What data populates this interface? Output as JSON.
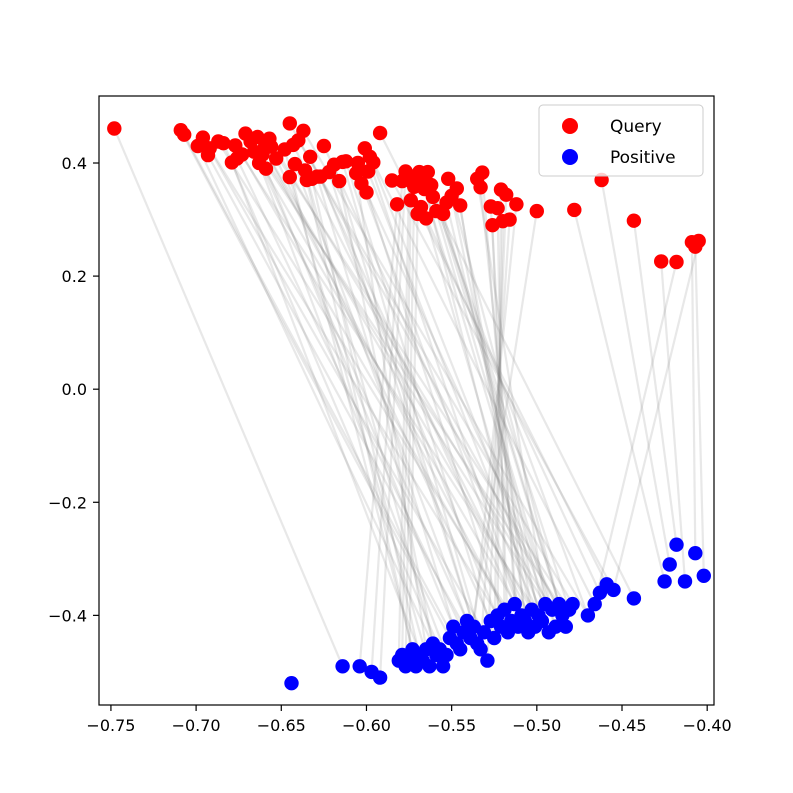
{
  "chart_data": {
    "type": "scatter",
    "title": "",
    "xlabel": "",
    "ylabel": "",
    "xlim": [
      -0.757,
      -0.396
    ],
    "ylim": [
      -0.5585,
      0.5185
    ],
    "xticks": [
      -0.75,
      -0.7,
      -0.65,
      -0.6,
      -0.55,
      -0.5,
      -0.45,
      -0.4
    ],
    "xtick_labels": [
      "−0.75",
      "−0.70",
      "−0.65",
      "−0.60",
      "−0.55",
      "−0.50",
      "−0.45",
      "−0.40"
    ],
    "yticks": [
      0.4,
      0.2,
      0.0,
      -0.2,
      -0.4
    ],
    "ytick_labels": [
      "0.4",
      "0.2",
      "0.0",
      "−0.2",
      "−0.4"
    ],
    "grid": false,
    "legend_position": "top-right",
    "connector_color": "#808080",
    "series": [
      {
        "name": "Query",
        "color": "#ff0000",
        "points": [
          [
            -0.748,
            0.461
          ],
          [
            -0.709,
            0.458
          ],
          [
            -0.707,
            0.45
          ],
          [
            -0.699,
            0.43
          ],
          [
            -0.696,
            0.445
          ],
          [
            -0.693,
            0.414
          ],
          [
            -0.692,
            0.426
          ],
          [
            -0.687,
            0.438
          ],
          [
            -0.684,
            0.435
          ],
          [
            -0.679,
            0.401
          ],
          [
            -0.677,
            0.431
          ],
          [
            -0.676,
            0.408
          ],
          [
            -0.673,
            0.415
          ],
          [
            -0.671,
            0.452
          ],
          [
            -0.668,
            0.438
          ],
          [
            -0.666,
            0.42
          ],
          [
            -0.664,
            0.446
          ],
          [
            -0.663,
            0.4
          ],
          [
            -0.661,
            0.415
          ],
          [
            -0.66,
            0.426
          ],
          [
            -0.659,
            0.39
          ],
          [
            -0.657,
            0.443
          ],
          [
            -0.656,
            0.429
          ],
          [
            -0.653,
            0.408
          ],
          [
            -0.648,
            0.424
          ],
          [
            -0.645,
            0.47
          ],
          [
            -0.645,
            0.375
          ],
          [
            -0.643,
            0.432
          ],
          [
            -0.642,
            0.398
          ],
          [
            -0.64,
            0.44
          ],
          [
            -0.637,
            0.457
          ],
          [
            -0.636,
            0.387
          ],
          [
            -0.635,
            0.37
          ],
          [
            -0.633,
            0.411
          ],
          [
            -0.632,
            0.372
          ],
          [
            -0.629,
            0.376
          ],
          [
            -0.627,
            0.376
          ],
          [
            -0.625,
            0.43
          ],
          [
            -0.622,
            0.384
          ],
          [
            -0.619,
            0.397
          ],
          [
            -0.616,
            0.368
          ],
          [
            -0.614,
            0.402
          ],
          [
            -0.612,
            0.403
          ],
          [
            -0.606,
            0.382
          ],
          [
            -0.605,
            0.4
          ],
          [
            -0.603,
            0.364
          ],
          [
            -0.601,
            0.426
          ],
          [
            -0.6,
            0.348
          ],
          [
            -0.599,
            0.385
          ],
          [
            -0.598,
            0.411
          ],
          [
            -0.596,
            0.401
          ],
          [
            -0.592,
            0.453
          ],
          [
            -0.585,
            0.369
          ],
          [
            -0.582,
            0.327
          ],
          [
            -0.579,
            0.368
          ],
          [
            -0.577,
            0.385
          ],
          [
            -0.575,
            0.37
          ],
          [
            -0.574,
            0.334
          ],
          [
            -0.572,
            0.358
          ],
          [
            -0.57,
            0.31
          ],
          [
            -0.569,
            0.384
          ],
          [
            -0.568,
            0.322
          ],
          [
            -0.567,
            0.374
          ],
          [
            -0.566,
            0.354
          ],
          [
            -0.565,
            0.302
          ],
          [
            -0.564,
            0.384
          ],
          [
            -0.562,
            0.361
          ],
          [
            -0.561,
            0.34
          ],
          [
            -0.559,
            0.315
          ],
          [
            -0.555,
            0.31
          ],
          [
            -0.553,
            0.33
          ],
          [
            -0.552,
            0.372
          ],
          [
            -0.55,
            0.342
          ],
          [
            -0.547,
            0.355
          ],
          [
            -0.545,
            0.325
          ],
          [
            -0.535,
            0.372
          ],
          [
            -0.533,
            0.357
          ],
          [
            -0.532,
            0.383
          ],
          [
            -0.527,
            0.323
          ],
          [
            -0.526,
            0.29
          ],
          [
            -0.523,
            0.32
          ],
          [
            -0.521,
            0.353
          ],
          [
            -0.52,
            0.297
          ],
          [
            -0.518,
            0.344
          ],
          [
            -0.516,
            0.3
          ],
          [
            -0.512,
            0.327
          ],
          [
            -0.5,
            0.315
          ],
          [
            -0.478,
            0.317
          ],
          [
            -0.462,
            0.37
          ],
          [
            -0.443,
            0.298
          ],
          [
            -0.427,
            0.226
          ],
          [
            -0.409,
            0.26
          ],
          [
            -0.407,
            0.252
          ],
          [
            -0.405,
            0.262
          ],
          [
            -0.418,
            0.225
          ]
        ]
      },
      {
        "name": "Positive",
        "color": "#0000ff",
        "points": [
          [
            -0.644,
            -0.52
          ],
          [
            -0.614,
            -0.49
          ],
          [
            -0.604,
            -0.49
          ],
          [
            -0.597,
            -0.5
          ],
          [
            -0.592,
            -0.51
          ],
          [
            -0.581,
            -0.48
          ],
          [
            -0.579,
            -0.47
          ],
          [
            -0.577,
            -0.49
          ],
          [
            -0.575,
            -0.48
          ],
          [
            -0.573,
            -0.46
          ],
          [
            -0.571,
            -0.49
          ],
          [
            -0.569,
            -0.47
          ],
          [
            -0.567,
            -0.48
          ],
          [
            -0.565,
            -0.46
          ],
          [
            -0.563,
            -0.49
          ],
          [
            -0.561,
            -0.45
          ],
          [
            -0.559,
            -0.47
          ],
          [
            -0.557,
            -0.46
          ],
          [
            -0.555,
            -0.49
          ],
          [
            -0.553,
            -0.47
          ],
          [
            -0.551,
            -0.44
          ],
          [
            -0.549,
            -0.42
          ],
          [
            -0.547,
            -0.45
          ],
          [
            -0.545,
            -0.46
          ],
          [
            -0.543,
            -0.43
          ],
          [
            -0.541,
            -0.41
          ],
          [
            -0.539,
            -0.44
          ],
          [
            -0.537,
            -0.42
          ],
          [
            -0.535,
            -0.45
          ],
          [
            -0.533,
            -0.46
          ],
          [
            -0.531,
            -0.43
          ],
          [
            -0.529,
            -0.48
          ],
          [
            -0.527,
            -0.41
          ],
          [
            -0.525,
            -0.44
          ],
          [
            -0.523,
            -0.4
          ],
          [
            -0.521,
            -0.42
          ],
          [
            -0.519,
            -0.39
          ],
          [
            -0.517,
            -0.43
          ],
          [
            -0.515,
            -0.41
          ],
          [
            -0.513,
            -0.38
          ],
          [
            -0.511,
            -0.42
          ],
          [
            -0.509,
            -0.4
          ],
          [
            -0.507,
            -0.41
          ],
          [
            -0.505,
            -0.43
          ],
          [
            -0.503,
            -0.39
          ],
          [
            -0.501,
            -0.42
          ],
          [
            -0.499,
            -0.4
          ],
          [
            -0.497,
            -0.41
          ],
          [
            -0.495,
            -0.38
          ],
          [
            -0.493,
            -0.43
          ],
          [
            -0.491,
            -0.39
          ],
          [
            -0.489,
            -0.42
          ],
          [
            -0.487,
            -0.38
          ],
          [
            -0.485,
            -0.4
          ],
          [
            -0.483,
            -0.42
          ],
          [
            -0.481,
            -0.39
          ],
          [
            -0.479,
            -0.38
          ],
          [
            -0.47,
            -0.4
          ],
          [
            -0.466,
            -0.38
          ],
          [
            -0.463,
            -0.36
          ],
          [
            -0.459,
            -0.345
          ],
          [
            -0.455,
            -0.355
          ],
          [
            -0.443,
            -0.37
          ],
          [
            -0.425,
            -0.34
          ],
          [
            -0.422,
            -0.31
          ],
          [
            -0.418,
            -0.275
          ],
          [
            -0.413,
            -0.34
          ],
          [
            -0.407,
            -0.29
          ],
          [
            -0.402,
            -0.33
          ]
        ]
      }
    ],
    "connections": [
      [
        0,
        1
      ],
      [
        1,
        20
      ],
      [
        2,
        22
      ],
      [
        3,
        18
      ],
      [
        4,
        30
      ],
      [
        5,
        26
      ],
      [
        6,
        34
      ],
      [
        7,
        40
      ],
      [
        8,
        17
      ],
      [
        9,
        12
      ],
      [
        10,
        46
      ],
      [
        11,
        24
      ],
      [
        12,
        38
      ],
      [
        13,
        52
      ],
      [
        14,
        28
      ],
      [
        15,
        42
      ],
      [
        16,
        44
      ],
      [
        17,
        19
      ],
      [
        18,
        48
      ],
      [
        19,
        36
      ],
      [
        20,
        21
      ],
      [
        21,
        50
      ],
      [
        22,
        55
      ],
      [
        23,
        32
      ],
      [
        24,
        9
      ],
      [
        25,
        53
      ],
      [
        26,
        14
      ],
      [
        27,
        45
      ],
      [
        28,
        25
      ],
      [
        29,
        56
      ],
      [
        30,
        57
      ],
      [
        31,
        16
      ],
      [
        32,
        10
      ],
      [
        33,
        39
      ],
      [
        34,
        11
      ],
      [
        35,
        23
      ],
      [
        36,
        35
      ],
      [
        37,
        47
      ],
      [
        38,
        27
      ],
      [
        39,
        29
      ],
      [
        40,
        15
      ],
      [
        41,
        31
      ],
      [
        42,
        33
      ],
      [
        43,
        13
      ],
      [
        44,
        37
      ],
      [
        45,
        41
      ],
      [
        46,
        43
      ],
      [
        47,
        54
      ],
      [
        48,
        49
      ],
      [
        49,
        51
      ],
      [
        50,
        58
      ],
      [
        51,
        60
      ],
      [
        52,
        61
      ],
      [
        53,
        2
      ],
      [
        54,
        3
      ],
      [
        55,
        4
      ],
      [
        56,
        5
      ],
      [
        57,
        6
      ],
      [
        58,
        7
      ],
      [
        59,
        8
      ],
      [
        60,
        62
      ],
      [
        61,
        59
      ],
      [
        62,
        45
      ],
      [
        63,
        51
      ],
      [
        64,
        47
      ],
      [
        65,
        55
      ],
      [
        66,
        53
      ],
      [
        67,
        57
      ],
      [
        68,
        50
      ],
      [
        69,
        54
      ],
      [
        70,
        49
      ],
      [
        71,
        52
      ],
      [
        72,
        46
      ],
      [
        73,
        44
      ],
      [
        74,
        43
      ],
      [
        75,
        48
      ],
      [
        76,
        42
      ],
      [
        77,
        40
      ],
      [
        78,
        39
      ],
      [
        79,
        37
      ],
      [
        80,
        36
      ],
      [
        81,
        34
      ],
      [
        82,
        33
      ],
      [
        83,
        31
      ],
      [
        84,
        29
      ],
      [
        85,
        27
      ],
      [
        86,
        26
      ],
      [
        87,
        63
      ],
      [
        88,
        64
      ],
      [
        89,
        65
      ],
      [
        90,
        66
      ],
      [
        91,
        67
      ],
      [
        92,
        68
      ],
      [
        93,
        61
      ],
      [
        94,
        58
      ]
    ]
  }
}
